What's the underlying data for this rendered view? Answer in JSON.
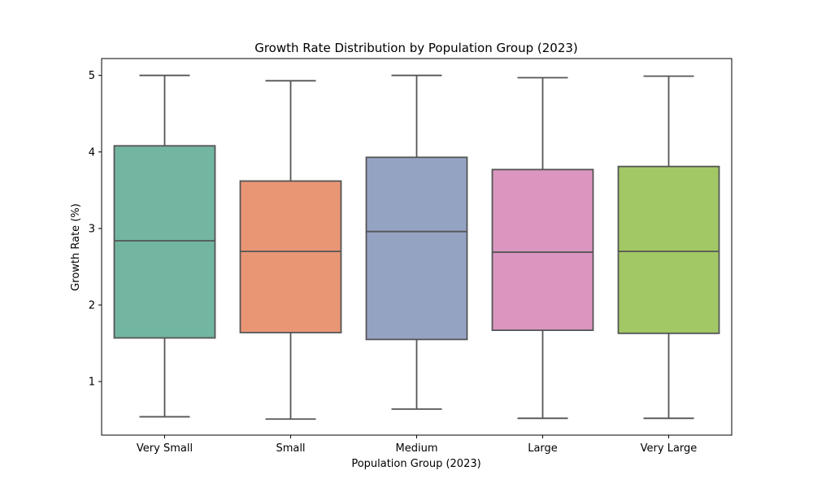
{
  "chart_data": {
    "type": "box",
    "title": "Growth Rate Distribution by Population Group (2023)",
    "xlabel": "Population Group (2023)",
    "ylabel": "Growth Rate (%)",
    "ylim": [
      0.3,
      5.22
    ],
    "yticks": [
      1,
      2,
      3,
      4,
      5
    ],
    "grid": false,
    "categories": [
      "Very Small",
      "Small",
      "Medium",
      "Large",
      "Very Large"
    ],
    "colors": [
      "#72b6a1",
      "#e99675",
      "#95a3c3",
      "#db96c0",
      "#a2c865"
    ],
    "boxes": [
      {
        "min": 0.54,
        "q1": 1.57,
        "median": 2.84,
        "q3": 4.08,
        "max": 5.0
      },
      {
        "min": 0.51,
        "q1": 1.64,
        "median": 2.7,
        "q3": 3.62,
        "max": 4.93
      },
      {
        "min": 0.64,
        "q1": 1.55,
        "median": 2.96,
        "q3": 3.93,
        "max": 5.0
      },
      {
        "min": 0.52,
        "q1": 1.67,
        "median": 2.69,
        "q3": 3.77,
        "max": 4.97
      },
      {
        "min": 0.52,
        "q1": 1.63,
        "median": 2.7,
        "q3": 3.81,
        "max": 4.99
      }
    ]
  }
}
